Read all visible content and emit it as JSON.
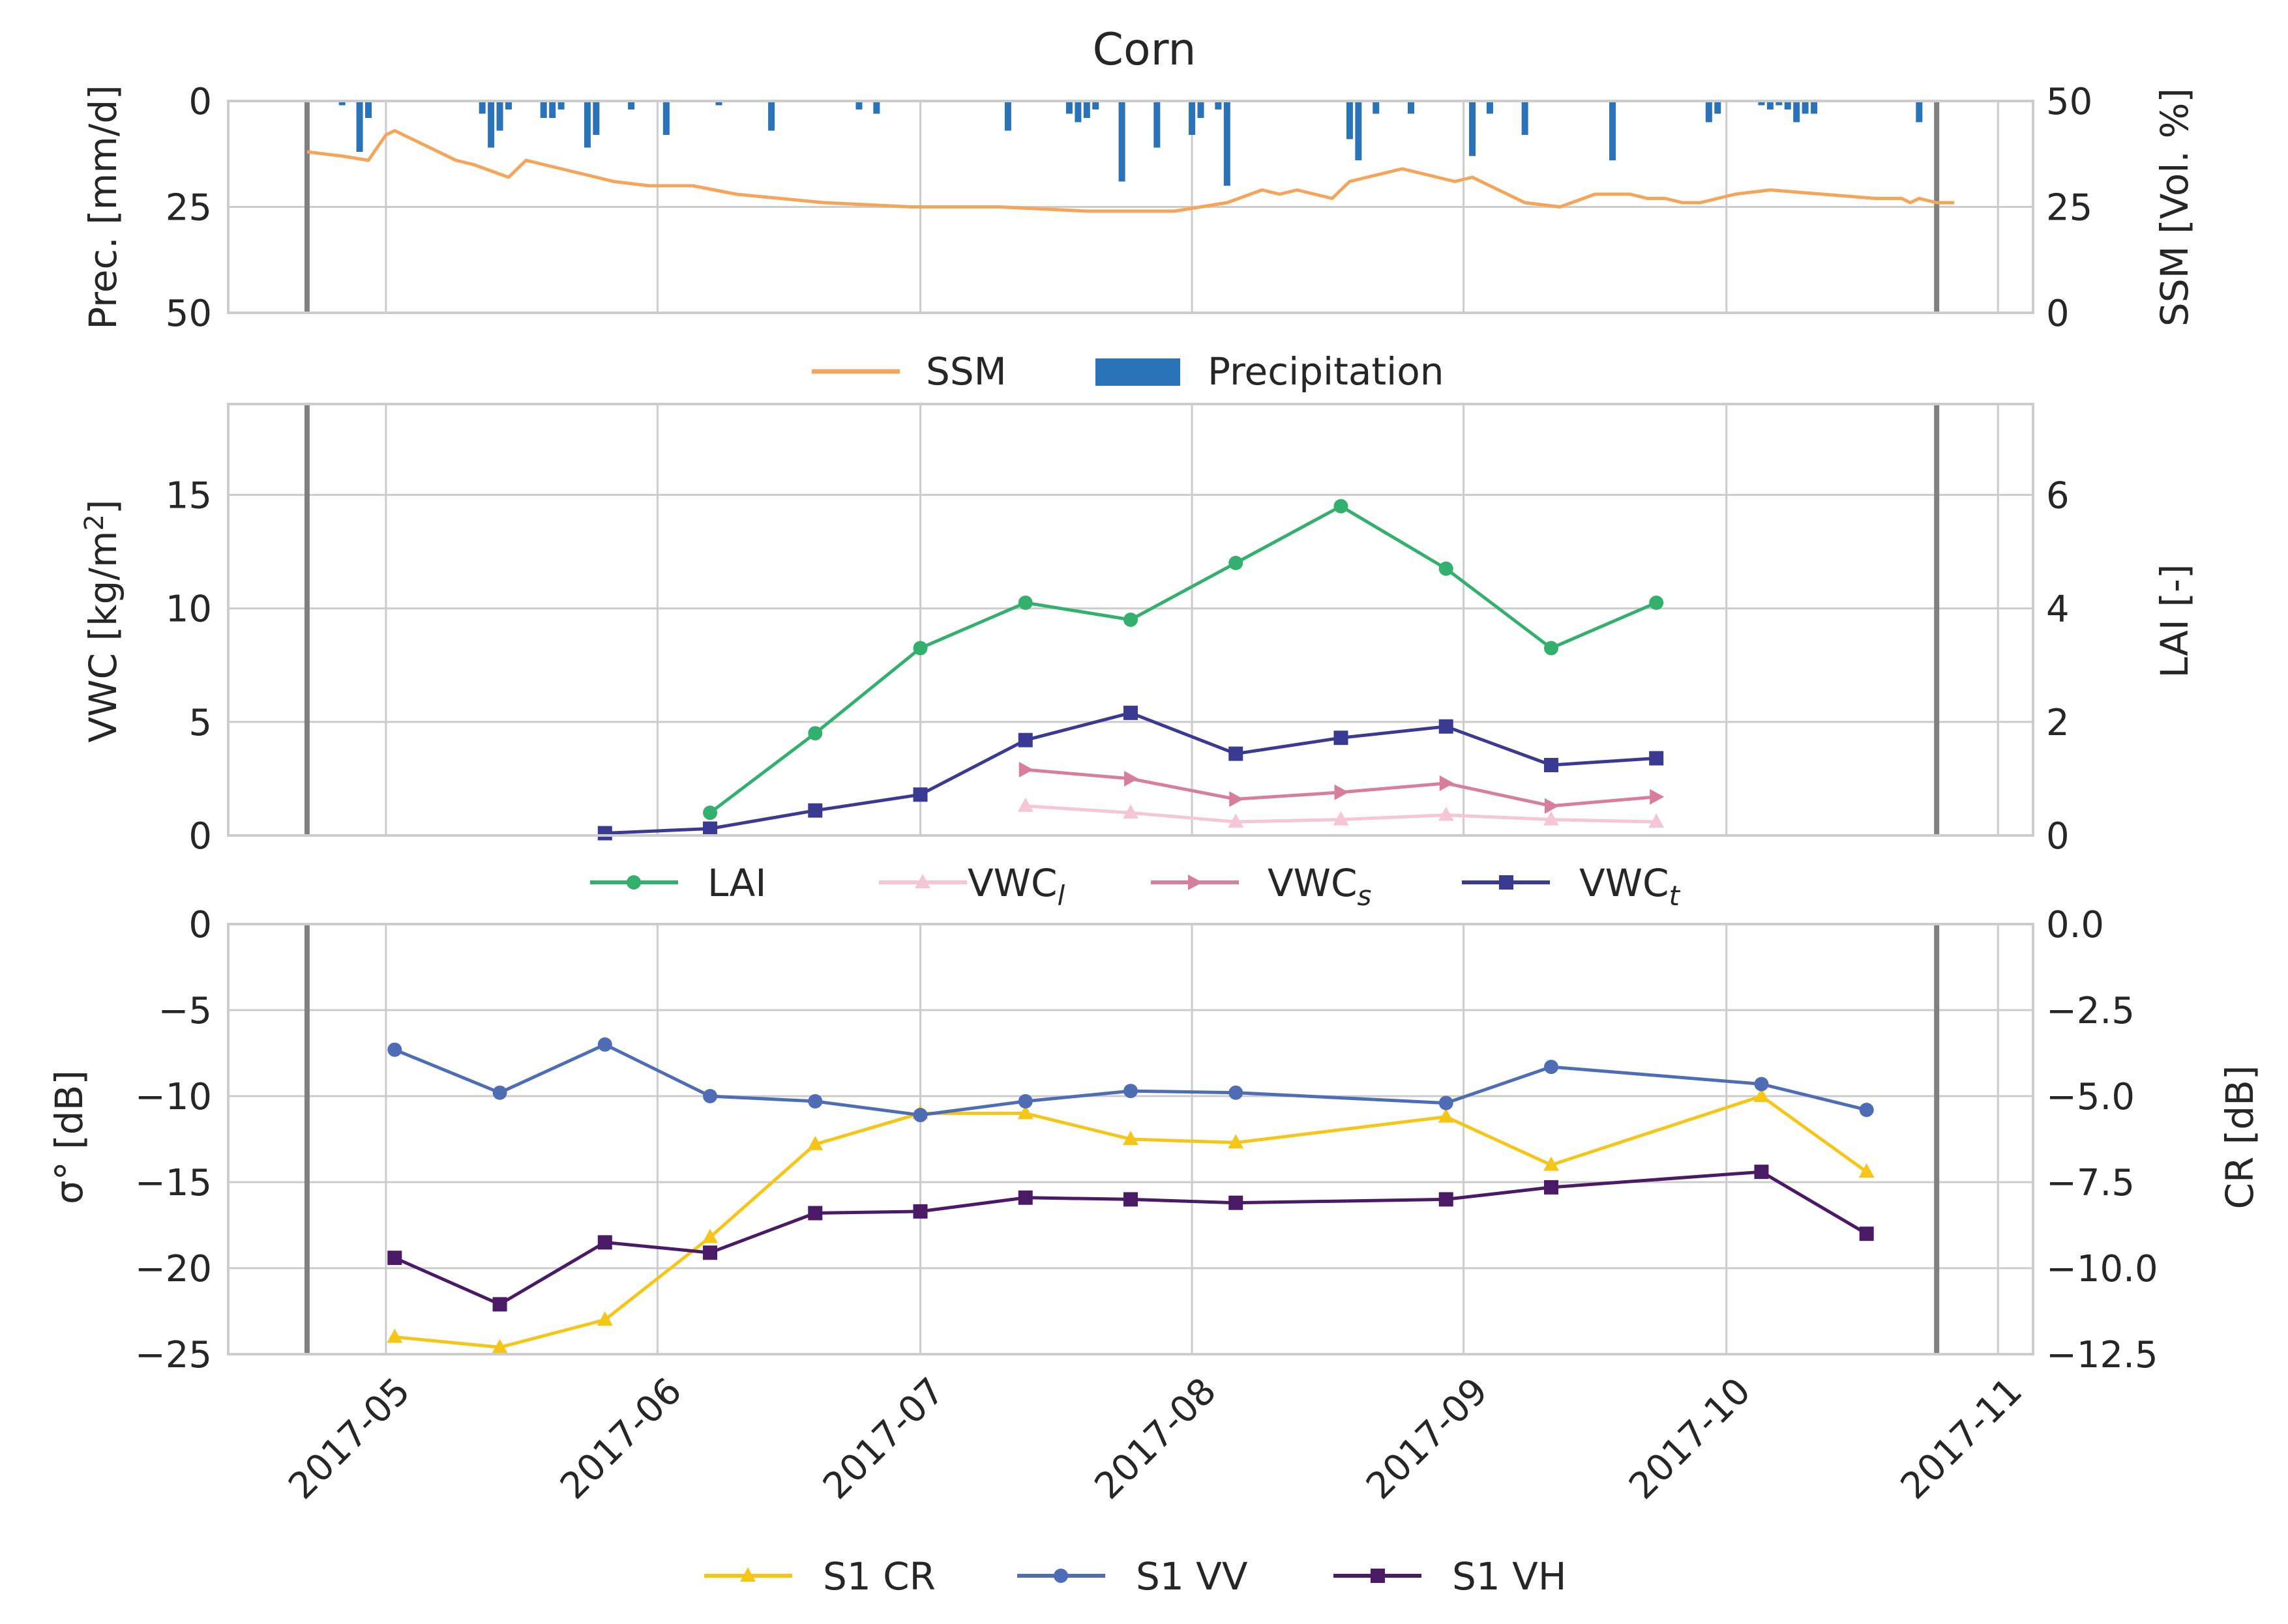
{
  "figure_title": "Corn",
  "x_axis": {
    "tick_labels": [
      "2017-05",
      "2017-06",
      "2017-07",
      "2017-08",
      "2017-09",
      "2017-10",
      "2017-11"
    ],
    "tick_days": [
      0,
      31,
      61,
      92,
      123,
      153,
      184
    ],
    "range_days": [
      -18,
      188
    ],
    "vertical_markers_days": [
      -9,
      177
    ]
  },
  "colors": {
    "ssm": "#f5a55a",
    "precip": "#2a73b8",
    "lai": "#33b06e",
    "vwc_l": "#f4c6d6",
    "vwc_s": "#d67e9b",
    "vwc_t": "#3a3a92",
    "s1_cr": "#f5c518",
    "s1_vv": "#4f6db5",
    "s1_vh": "#4a1a66",
    "grid": "#cccccc",
    "frame": "#cccccc",
    "marker": "#808080"
  },
  "legends": {
    "top": [
      "SSM",
      "Precipitation"
    ],
    "middle": {
      "lai": "LAI",
      "vwc_l": {
        "base": "VWC",
        "sub": "l"
      },
      "vwc_s": {
        "base": "VWC",
        "sub": "s"
      },
      "vwc_t": {
        "base": "VWC",
        "sub": "t"
      }
    },
    "bottom": [
      "S1 CR",
      "S1 VV",
      "S1 VH"
    ]
  },
  "chart_data": [
    {
      "id": "top",
      "type": "bar+line",
      "ylabel_left": "Prec. [mm/d]",
      "ylabel_right": "SSM [Vol. %]",
      "ylim_left": [
        0,
        50
      ],
      "left_inverted": true,
      "left_ticks": [
        0,
        25,
        50
      ],
      "left_tick_labels": [
        "0",
        "25",
        "50"
      ],
      "ylim_right": [
        0,
        50
      ],
      "right_ticks": [
        50,
        25,
        0
      ],
      "right_tick_labels": [
        "50",
        "25",
        "0"
      ],
      "grid": true,
      "legend_position": "below",
      "series": [
        {
          "name": "Precipitation",
          "kind": "bar",
          "x_days": [
            -5,
            -3,
            -2,
            11,
            12,
            13,
            14,
            18,
            19,
            20,
            23,
            24,
            28,
            32,
            38,
            44,
            54,
            56,
            71,
            78,
            79,
            80,
            81,
            84,
            88,
            92,
            93,
            95,
            96,
            110,
            111,
            113,
            117,
            124,
            126,
            130,
            140,
            151,
            152,
            157,
            158,
            159,
            160,
            161,
            162,
            163,
            175
          ],
          "values": [
            1,
            12,
            4,
            3,
            11,
            7,
            2,
            4,
            4,
            2,
            11,
            8,
            2,
            8,
            1,
            7,
            2,
            3,
            7,
            3,
            5,
            4,
            2,
            19,
            11,
            8,
            4,
            2,
            20,
            9,
            14,
            3,
            3,
            13,
            3,
            8,
            14,
            5,
            3,
            1,
            2,
            1,
            2,
            5,
            3,
            3,
            5
          ]
        },
        {
          "name": "SSM",
          "kind": "line",
          "x_days": [
            -9,
            -5,
            -2,
            0,
            1,
            2,
            4,
            6,
            8,
            10,
            14,
            16,
            18,
            20,
            22,
            26,
            30,
            35,
            40,
            50,
            60,
            70,
            80,
            90,
            93,
            96,
            100,
            102,
            104,
            106,
            108,
            110,
            112,
            114,
            116,
            118,
            120,
            122,
            124,
            126,
            128,
            130,
            134,
            138,
            142,
            144,
            146,
            148,
            150,
            154,
            158,
            164,
            170,
            173,
            174,
            175,
            177,
            179
          ],
          "values": [
            38,
            37,
            36,
            42,
            43,
            42,
            40,
            38,
            36,
            35,
            32,
            36,
            35,
            34,
            33,
            31,
            30,
            30,
            28,
            26,
            25,
            25,
            24,
            24,
            25,
            26,
            29,
            28,
            29,
            28,
            27,
            31,
            32,
            33,
            34,
            33,
            32,
            31,
            32,
            30,
            28,
            26,
            25,
            28,
            28,
            27,
            27,
            26,
            26,
            28,
            29,
            28,
            27,
            27,
            26,
            27,
            26,
            26
          ]
        }
      ]
    },
    {
      "id": "middle",
      "type": "line",
      "ylabel_left": "VWC [kg/m²]",
      "ylabel_left_base": "VWC [kg/m",
      "ylabel_left_sup": "2",
      "ylabel_left_end": "]",
      "ylabel_right": "LAI [-]",
      "ylim_left": [
        0,
        19
      ],
      "left_ticks": [
        0,
        5,
        10,
        15
      ],
      "left_tick_labels": [
        "0",
        "5",
        "10",
        "15"
      ],
      "ylim_right": [
        0,
        7.6
      ],
      "right_ticks": [
        0,
        2,
        4,
        6
      ],
      "right_tick_labels": [
        "0",
        "2",
        "4",
        "6"
      ],
      "grid": true,
      "legend_position": "below",
      "series": [
        {
          "name": "LAI",
          "axis": "right",
          "marker": "circle",
          "x_days": [
            37,
            49,
            61,
            73,
            85,
            97,
            109,
            121,
            133,
            145
          ],
          "values": [
            0.4,
            1.8,
            3.3,
            4.1,
            3.8,
            4.8,
            5.8,
            4.7,
            3.3,
            4.1
          ]
        },
        {
          "name": "VWCl",
          "axis": "left",
          "marker": "triangle-up",
          "x_days": [
            73,
            85,
            97,
            109,
            121,
            133,
            145
          ],
          "values": [
            1.3,
            1.0,
            0.6,
            0.7,
            0.9,
            0.7,
            0.6
          ]
        },
        {
          "name": "VWCs",
          "axis": "left",
          "marker": "triangle-right",
          "x_days": [
            73,
            85,
            97,
            109,
            121,
            133,
            145
          ],
          "values": [
            2.9,
            2.5,
            1.6,
            1.9,
            2.3,
            1.3,
            1.7
          ]
        },
        {
          "name": "VWCt",
          "axis": "left",
          "marker": "square",
          "x_days": [
            25,
            37,
            49,
            61,
            73,
            85,
            97,
            109,
            121,
            133,
            145
          ],
          "values": [
            0.1,
            0.3,
            1.1,
            1.8,
            4.2,
            5.4,
            3.6,
            4.3,
            4.8,
            3.1,
            3.4
          ]
        }
      ]
    },
    {
      "id": "bottom",
      "type": "line",
      "ylabel_left": "σ° [dB]",
      "ylabel_right": "CR [dB]",
      "ylim_left": [
        -25,
        0
      ],
      "left_ticks": [
        0,
        -5,
        -10,
        -15,
        -20,
        -25
      ],
      "left_tick_labels": [
        "0",
        "−5",
        "−10",
        "−15",
        "−20",
        "−25"
      ],
      "ylim_right": [
        -12.5,
        0
      ],
      "right_ticks": [
        0,
        -2.5,
        -5,
        -7.5,
        -10,
        -12.5
      ],
      "right_tick_labels": [
        "0.0",
        "−2.5",
        "−5.0",
        "−7.5",
        "−10.0",
        "−12.5"
      ],
      "grid": true,
      "legend_position": "below",
      "series": [
        {
          "name": "S1 CR",
          "axis": "right",
          "marker": "triangle-up",
          "x_days": [
            1,
            13,
            25,
            37,
            49,
            61,
            73,
            85,
            97,
            121,
            133,
            157,
            169
          ],
          "values": [
            -12.0,
            -12.3,
            -11.5,
            -9.1,
            -6.4,
            -5.5,
            -5.5,
            -6.25,
            -6.35,
            -5.6,
            -7.0,
            -5.0,
            -7.2
          ]
        },
        {
          "name": "S1 VV",
          "axis": "left",
          "marker": "circle",
          "x_days": [
            1,
            13,
            25,
            37,
            49,
            61,
            73,
            85,
            97,
            121,
            133,
            157,
            169
          ],
          "values": [
            -7.3,
            -9.8,
            -7.0,
            -10.0,
            -10.3,
            -11.1,
            -10.3,
            -9.7,
            -9.8,
            -10.4,
            -8.3,
            -9.3,
            -10.8
          ]
        },
        {
          "name": "S1 VH",
          "axis": "left",
          "marker": "square",
          "x_days": [
            1,
            13,
            25,
            37,
            49,
            61,
            73,
            85,
            97,
            121,
            133,
            157,
            169
          ],
          "values": [
            -19.4,
            -22.1,
            -18.5,
            -19.1,
            -16.8,
            -16.7,
            -15.9,
            -16.0,
            -16.2,
            -16.0,
            -15.3,
            -14.4,
            -18.0
          ]
        }
      ]
    }
  ]
}
